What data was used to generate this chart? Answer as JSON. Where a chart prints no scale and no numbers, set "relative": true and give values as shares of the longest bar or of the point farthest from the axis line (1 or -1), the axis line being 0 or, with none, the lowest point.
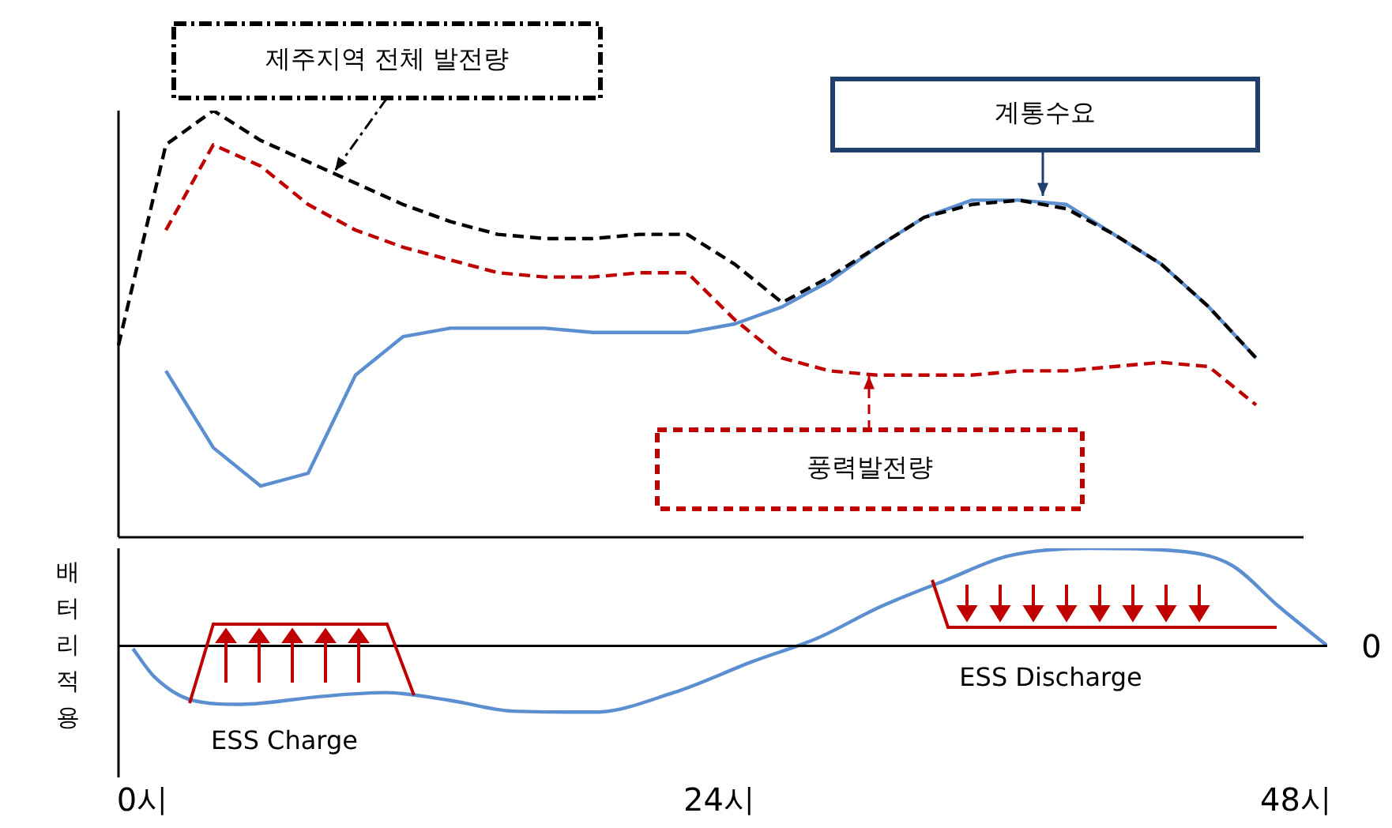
{
  "chart_data": [
    {
      "type": "line",
      "relative": true,
      "categories": [
        null,
        null,
        null,
        null,
        null,
        null,
        null,
        null,
        null,
        null,
        null,
        null,
        null,
        null,
        null,
        null,
        null,
        null,
        null,
        null,
        null,
        null,
        null,
        null,
        null,
        null
      ],
      "tick_labels": false,
      "legend": false,
      "grid": false,
      "marker": "none",
      "annotations": [
        "제주지역 전체 발전량",
        "계통수요",
        "풍력발전량"
      ],
      "series": [
        {
          "color": "#000000",
          "line_style": "dashed",
          "values": [
            0.45,
            0.92,
            1.0,
            0.93,
            0.88,
            0.83,
            0.78,
            0.74,
            0.71,
            0.7,
            0.7,
            0.71,
            0.71,
            0.64,
            0.55,
            0.61,
            0.68,
            0.75,
            0.78,
            0.79,
            0.77,
            0.71,
            0.64,
            0.54,
            0.42,
            null
          ]
        },
        {
          "color": "#c00000",
          "line_style": "dashed",
          "values": [
            null,
            0.72,
            0.92,
            0.87,
            0.78,
            0.72,
            0.68,
            0.65,
            0.62,
            0.61,
            0.61,
            0.62,
            0.62,
            0.51,
            0.42,
            0.39,
            0.38,
            0.38,
            0.38,
            0.39,
            0.39,
            0.4,
            0.41,
            0.4,
            0.31,
            null
          ]
        },
        {
          "color": "#5b8fd0",
          "line_style": "solid",
          "values": [
            null,
            0.39,
            0.21,
            0.12,
            0.15,
            0.38,
            0.47,
            0.49,
            0.49,
            0.49,
            0.48,
            0.48,
            0.48,
            0.5,
            0.54,
            0.6,
            0.68,
            0.75,
            0.79,
            0.79,
            0.78,
            0.71,
            0.64,
            0.54,
            0.42,
            null
          ]
        }
      ]
    },
    {
      "type": "line",
      "relative": true,
      "xlim": [
        -1,
        49.3
      ],
      "xticks": [
        {
          "value": 0,
          "label": "0시"
        },
        {
          "value": 24,
          "label": "24시"
        },
        {
          "value": 48,
          "label": "48시"
        }
      ],
      "tick_labels": "x",
      "legend": false,
      "grid": false,
      "marker": "none",
      "ylabel": "배터리적용",
      "annotations": [
        "ESS Charge",
        "ESS Discharge"
      ],
      "ref_lines": [
        {
          "axis": "y",
          "value": 0,
          "label": "0",
          "color": "#000000"
        }
      ],
      "series": [
        {
          "color": "#5b8fd0",
          "line_style": "solid",
          "x": [
            -0.4,
            0.5,
            2.1,
            4.1,
            7.4,
            10.1,
            12.8,
            15.4,
            18.8,
            22.1,
            25.4,
            28.1,
            30.7,
            33.4,
            36.0,
            39.4,
            42.7,
            45.3,
            47.3,
            49.3
          ],
          "values": [
            -0.03,
            -0.32,
            -0.56,
            -0.6,
            -0.52,
            -0.48,
            -0.56,
            -0.67,
            -0.68,
            -0.48,
            -0.16,
            0.08,
            0.4,
            0.67,
            0.92,
            1.0,
            0.98,
            0.83,
            0.4,
            0
          ]
        }
      ]
    }
  ]
}
